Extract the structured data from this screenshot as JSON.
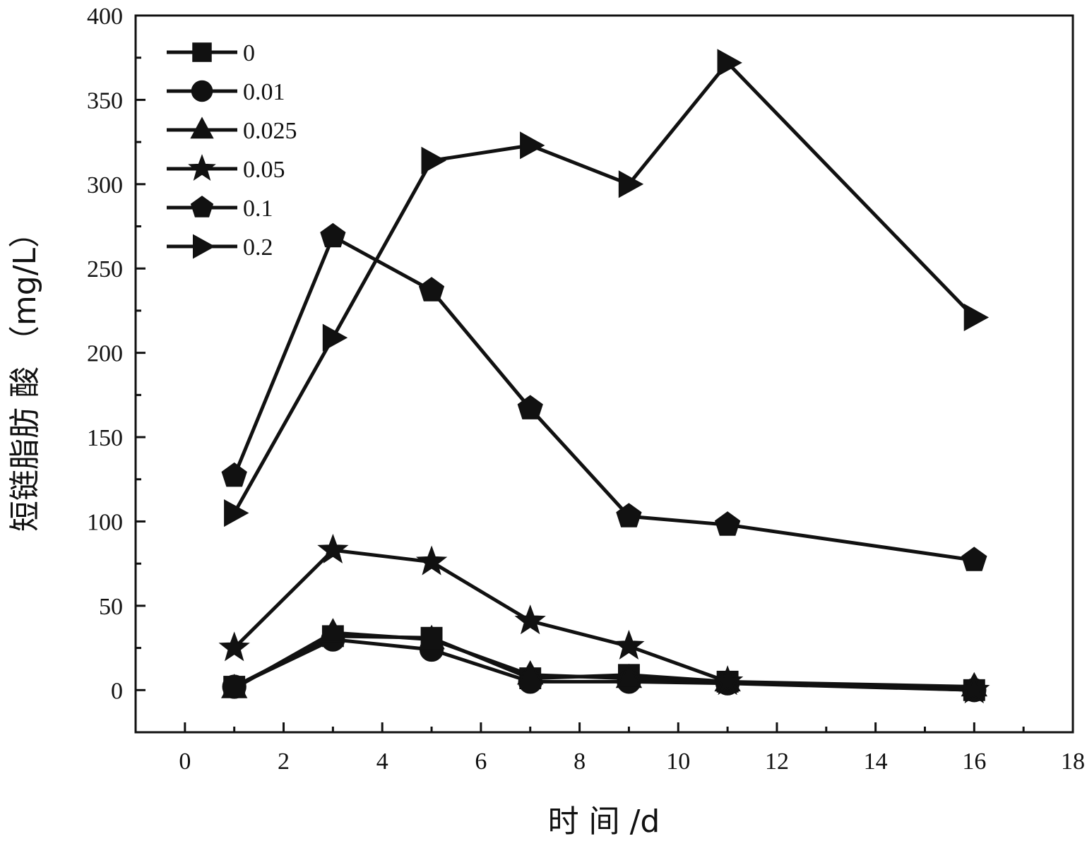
{
  "chart_data": {
    "type": "line",
    "title": "",
    "xlabel": "时 间 /d",
    "ylabel": "短链脂肪 酸 （mg/L）",
    "xlim": [
      -1,
      18
    ],
    "ylim": [
      -25,
      400
    ],
    "xticks": [
      0,
      2,
      4,
      6,
      8,
      10,
      12,
      14,
      16,
      18
    ],
    "yticks": [
      0,
      50,
      100,
      150,
      200,
      250,
      300,
      350,
      400
    ],
    "x": [
      1,
      3,
      5,
      7,
      9,
      11,
      16
    ],
    "legend_position": "top-left",
    "grid": false,
    "series": [
      {
        "name": "0",
        "marker": "square",
        "values": [
          2,
          32,
          31,
          7,
          9,
          5,
          0
        ]
      },
      {
        "name": "0.01",
        "marker": "circle",
        "values": [
          2,
          30,
          24,
          5,
          5,
          4,
          0
        ]
      },
      {
        "name": "0.025",
        "marker": "triangle-up",
        "values": [
          1,
          34,
          30,
          9,
          7,
          5,
          2
        ]
      },
      {
        "name": "0.05",
        "marker": "star",
        "values": [
          25,
          83,
          76,
          41,
          26,
          5,
          0
        ]
      },
      {
        "name": "0.1",
        "marker": "pentagon",
        "values": [
          127,
          269,
          237,
          167,
          103,
          98,
          77
        ]
      },
      {
        "name": "0.2",
        "marker": "triangle-right",
        "values": [
          105,
          209,
          314,
          323,
          300,
          372,
          221
        ]
      }
    ],
    "color": "#111111"
  }
}
